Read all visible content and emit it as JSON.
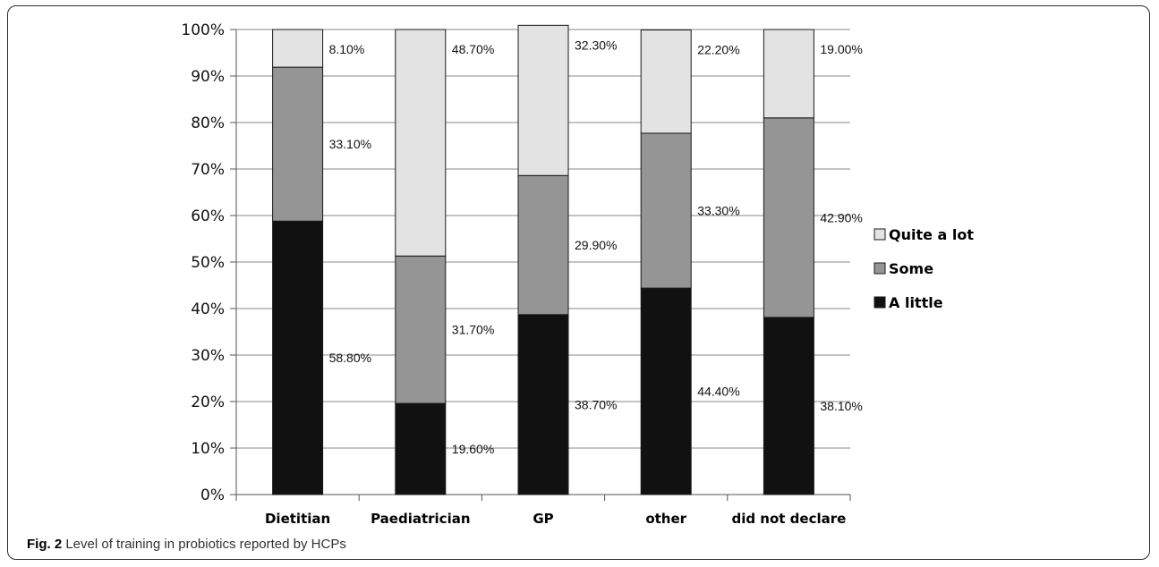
{
  "chart_data": {
    "type": "bar",
    "stacked": true,
    "categories": [
      "Dietitian",
      "Paediatrician",
      "GP",
      "other",
      "did not declare"
    ],
    "series": [
      {
        "name": "A little",
        "values": [
          58.8,
          19.6,
          38.7,
          44.4,
          38.1
        ],
        "labels": [
          "58.80%",
          "19.60%",
          "38.70%",
          "44.40%",
          "38.10%"
        ],
        "color": "#111111"
      },
      {
        "name": "Some",
        "values": [
          33.1,
          31.7,
          29.9,
          33.3,
          42.9
        ],
        "labels": [
          "33.10%",
          "31.70%",
          "29.90%",
          "33.30%",
          "42.90%"
        ],
        "color": "#959595"
      },
      {
        "name": "Quite a lot",
        "values": [
          8.1,
          48.7,
          32.3,
          22.2,
          19.0
        ],
        "labels": [
          "8.10%",
          "48.70%",
          "32.30%",
          "22.20%",
          "19.00%"
        ],
        "color": "#e3e3e3"
      }
    ],
    "ylim": [
      0,
      100
    ],
    "yticks": [
      "0%",
      "10%",
      "20%",
      "30%",
      "40%",
      "50%",
      "60%",
      "70%",
      "80%",
      "90%",
      "100%"
    ],
    "grid": true,
    "legend": "right",
    "legend_order": [
      "Quite a lot",
      "Some",
      "A little"
    ]
  },
  "caption": {
    "label": "Fig. 2",
    "text": " Level of training in probiotics reported by HCPs"
  }
}
